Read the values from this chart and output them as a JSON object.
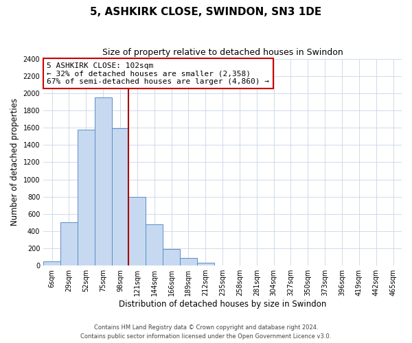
{
  "title": "5, ASHKIRK CLOSE, SWINDON, SN3 1DE",
  "subtitle": "Size of property relative to detached houses in Swindon",
  "xlabel": "Distribution of detached houses by size in Swindon",
  "ylabel": "Number of detached properties",
  "bar_labels": [
    "6sqm",
    "29sqm",
    "52sqm",
    "75sqm",
    "98sqm",
    "121sqm",
    "144sqm",
    "166sqm",
    "189sqm",
    "212sqm",
    "235sqm",
    "258sqm",
    "281sqm",
    "304sqm",
    "327sqm",
    "350sqm",
    "373sqm",
    "396sqm",
    "419sqm",
    "442sqm",
    "465sqm"
  ],
  "bar_values": [
    50,
    500,
    1580,
    1950,
    1590,
    800,
    480,
    190,
    90,
    30,
    5,
    5,
    0,
    0,
    0,
    0,
    0,
    0,
    0,
    0,
    0
  ],
  "bar_color": "#c6d9f0",
  "bar_edge_color": "#5b8cc8",
  "annotation_title": "5 ASHKIRK CLOSE: 102sqm",
  "annotation_line1": "← 32% of detached houses are smaller (2,358)",
  "annotation_line2": "67% of semi-detached houses are larger (4,860) →",
  "annotation_box_facecolor": "#ffffff",
  "annotation_box_edgecolor": "#cc0000",
  "vline_color": "#aa0000",
  "vline_x_index": 4.5,
  "ylim": [
    0,
    2400
  ],
  "yticks": [
    0,
    200,
    400,
    600,
    800,
    1000,
    1200,
    1400,
    1600,
    1800,
    2000,
    2200,
    2400
  ],
  "footer_line1": "Contains HM Land Registry data © Crown copyright and database right 2024.",
  "footer_line2": "Contains public sector information licensed under the Open Government Licence v3.0.",
  "background_color": "#ffffff",
  "grid_color": "#c8d4e8",
  "title_fontsize": 11,
  "subtitle_fontsize": 9,
  "axis_label_fontsize": 8.5,
  "tick_fontsize": 7,
  "annotation_fontsize": 8,
  "footer_fontsize": 6
}
